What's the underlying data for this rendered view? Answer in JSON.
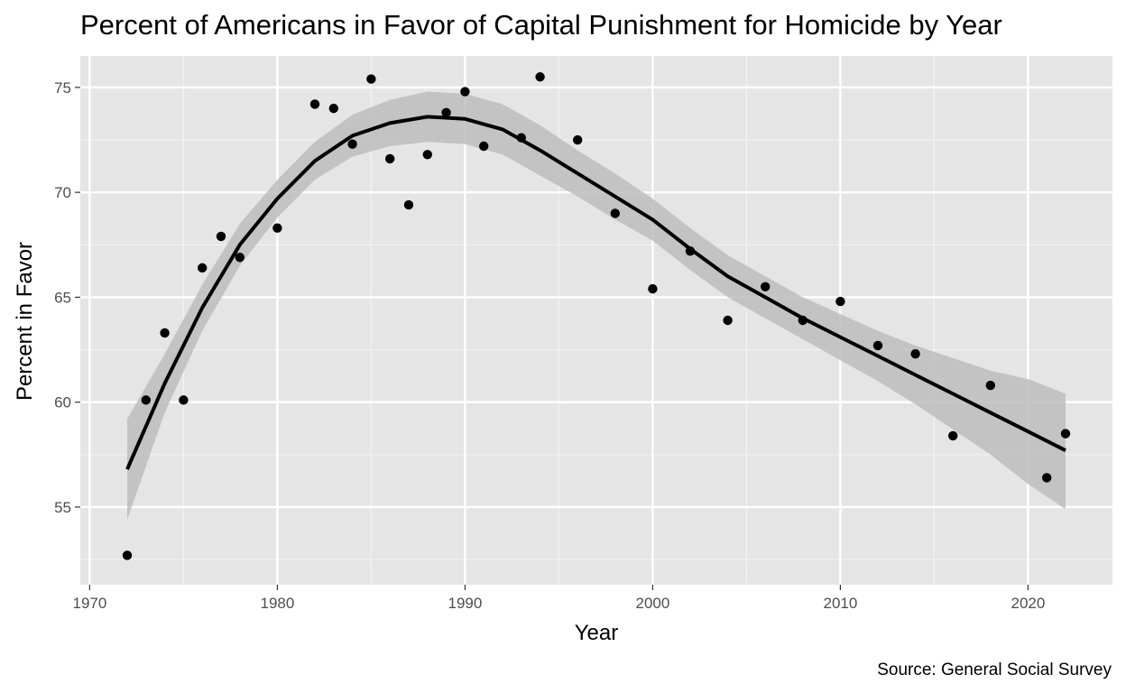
{
  "chart_data": {
    "type": "scatter",
    "title": "Percent of Americans in Favor of Capital Punishment for Homicide by Year",
    "xlabel": "Year",
    "ylabel": "Percent in Favor",
    "caption": "Source: General Social Survey",
    "xlim": [
      1969.5,
      2024.5
    ],
    "ylim": [
      51.3,
      76.5
    ],
    "x_ticks": [
      1970,
      1980,
      1990,
      2000,
      2010,
      2020
    ],
    "y_ticks": [
      55,
      60,
      65,
      70,
      75
    ],
    "grid": true,
    "panel_background": "#e5e5e5",
    "point_color": "#000000",
    "band_color": "#bdbdbd",
    "points": [
      {
        "x": 1972,
        "y": 52.7
      },
      {
        "x": 1973,
        "y": 60.1
      },
      {
        "x": 1974,
        "y": 63.3
      },
      {
        "x": 1975,
        "y": 60.1
      },
      {
        "x": 1976,
        "y": 66.4
      },
      {
        "x": 1977,
        "y": 67.9
      },
      {
        "x": 1978,
        "y": 66.9
      },
      {
        "x": 1980,
        "y": 68.3
      },
      {
        "x": 1982,
        "y": 74.2
      },
      {
        "x": 1983,
        "y": 74.0
      },
      {
        "x": 1984,
        "y": 72.3
      },
      {
        "x": 1985,
        "y": 75.4
      },
      {
        "x": 1986,
        "y": 71.6
      },
      {
        "x": 1987,
        "y": 69.4
      },
      {
        "x": 1988,
        "y": 71.8
      },
      {
        "x": 1989,
        "y": 73.8
      },
      {
        "x": 1990,
        "y": 74.8
      },
      {
        "x": 1991,
        "y": 72.2
      },
      {
        "x": 1993,
        "y": 72.6
      },
      {
        "x": 1994,
        "y": 75.5
      },
      {
        "x": 1996,
        "y": 72.5
      },
      {
        "x": 1998,
        "y": 69.0
      },
      {
        "x": 2000,
        "y": 65.4
      },
      {
        "x": 2002,
        "y": 67.2
      },
      {
        "x": 2004,
        "y": 63.9
      },
      {
        "x": 2006,
        "y": 65.5
      },
      {
        "x": 2008,
        "y": 63.9
      },
      {
        "x": 2010,
        "y": 64.8
      },
      {
        "x": 2012,
        "y": 62.7
      },
      {
        "x": 2014,
        "y": 62.3
      },
      {
        "x": 2016,
        "y": 58.4
      },
      {
        "x": 2018,
        "y": 60.8
      },
      {
        "x": 2021,
        "y": 56.4
      },
      {
        "x": 2022,
        "y": 58.5
      }
    ],
    "smooth": [
      {
        "x": 1972,
        "y": 56.8,
        "lo": 54.4,
        "hi": 59.2
      },
      {
        "x": 1974,
        "y": 60.9,
        "lo": 59.5,
        "hi": 62.3
      },
      {
        "x": 1976,
        "y": 64.5,
        "lo": 63.4,
        "hi": 65.6
      },
      {
        "x": 1978,
        "y": 67.5,
        "lo": 66.5,
        "hi": 68.5
      },
      {
        "x": 1980,
        "y": 69.7,
        "lo": 68.8,
        "hi": 70.6
      },
      {
        "x": 1982,
        "y": 71.5,
        "lo": 70.6,
        "hi": 72.4
      },
      {
        "x": 1984,
        "y": 72.7,
        "lo": 71.7,
        "hi": 73.7
      },
      {
        "x": 1986,
        "y": 73.3,
        "lo": 72.2,
        "hi": 74.4
      },
      {
        "x": 1988,
        "y": 73.6,
        "lo": 72.4,
        "hi": 74.8
      },
      {
        "x": 1990,
        "y": 73.5,
        "lo": 72.3,
        "hi": 74.7
      },
      {
        "x": 1992,
        "y": 73.0,
        "lo": 71.8,
        "hi": 74.2
      },
      {
        "x": 1994,
        "y": 72.0,
        "lo": 70.8,
        "hi": 73.2
      },
      {
        "x": 1996,
        "y": 70.9,
        "lo": 69.8,
        "hi": 72.0
      },
      {
        "x": 1998,
        "y": 69.8,
        "lo": 68.7,
        "hi": 70.9
      },
      {
        "x": 2000,
        "y": 68.7,
        "lo": 67.7,
        "hi": 69.7
      },
      {
        "x": 2002,
        "y": 67.3,
        "lo": 66.3,
        "hi": 68.3
      },
      {
        "x": 2004,
        "y": 66.0,
        "lo": 65.0,
        "hi": 67.0
      },
      {
        "x": 2006,
        "y": 65.0,
        "lo": 64.0,
        "hi": 66.0
      },
      {
        "x": 2008,
        "y": 64.0,
        "lo": 63.0,
        "hi": 65.0
      },
      {
        "x": 2010,
        "y": 63.1,
        "lo": 62.0,
        "hi": 64.2
      },
      {
        "x": 2012,
        "y": 62.2,
        "lo": 61.0,
        "hi": 63.4
      },
      {
        "x": 2014,
        "y": 61.3,
        "lo": 59.9,
        "hi": 62.7
      },
      {
        "x": 2016,
        "y": 60.4,
        "lo": 58.7,
        "hi": 62.1
      },
      {
        "x": 2018,
        "y": 59.5,
        "lo": 57.5,
        "hi": 61.5
      },
      {
        "x": 2020,
        "y": 58.6,
        "lo": 56.1,
        "hi": 61.1
      },
      {
        "x": 2022,
        "y": 57.7,
        "lo": 54.9,
        "hi": 60.4
      }
    ]
  }
}
